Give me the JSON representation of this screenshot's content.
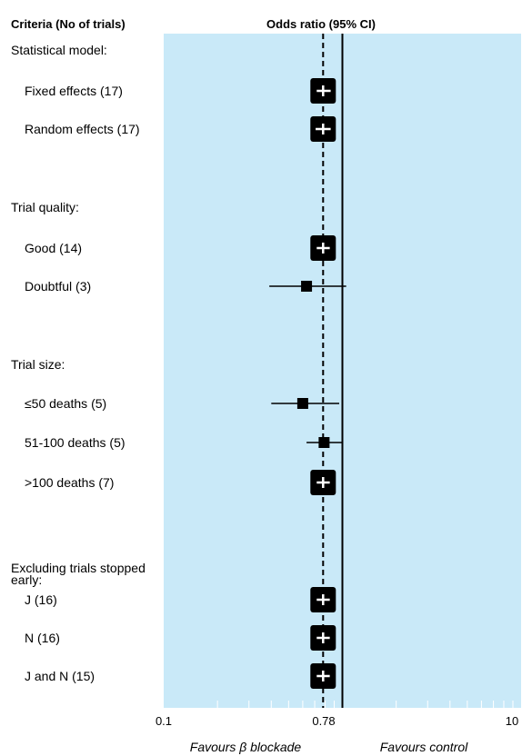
{
  "chart_data": {
    "type": "forest",
    "column_headers": {
      "criteria": "Criteria (No of trials)",
      "effect": "Odds ratio (95% CI)"
    },
    "x_scale": "log",
    "xlim": [
      0.1,
      10
    ],
    "x_tick_labels": [
      "0.1",
      "0.78",
      "10"
    ],
    "null_line": 1,
    "pooled_estimate": 0.78,
    "favours_left": "Favours β blockade",
    "favours_right": "Favours control",
    "colors": {
      "panel": "#c9e9f8",
      "marker": "#000000",
      "marker_cross": "#ffffff"
    },
    "rows": [
      {
        "label": "Statistical model:",
        "type": "group"
      },
      {
        "label": "Fixed effects (17)",
        "type": "estimate",
        "or": 0.78,
        "ci": [
          0.71,
          0.87
        ],
        "marker": "large"
      },
      {
        "label": "Random effects (17)",
        "type": "estimate",
        "or": 0.78,
        "ci": [
          0.7,
          0.87
        ],
        "marker": "large"
      },
      {
        "label": "Trial quality:",
        "type": "group"
      },
      {
        "label": "Good (14)",
        "type": "estimate",
        "or": 0.78,
        "ci": [
          0.71,
          0.86
        ],
        "marker": "large"
      },
      {
        "label": "Doubtful (3)",
        "type": "estimate",
        "or": 0.63,
        "ci": [
          0.39,
          1.05
        ],
        "marker": "small"
      },
      {
        "label": "Trial size:",
        "type": "group"
      },
      {
        "label": "≤50 deaths (5)",
        "type": "estimate",
        "or": 0.6,
        "ci": [
          0.4,
          0.96
        ],
        "marker": "small"
      },
      {
        "label": "51-100 deaths (5)",
        "type": "estimate",
        "or": 0.79,
        "ci": [
          0.63,
          0.99
        ],
        "marker": "small"
      },
      {
        "label": ">100 deaths (7)",
        "type": "estimate",
        "or": 0.78,
        "ci": [
          0.71,
          0.86
        ],
        "marker": "large"
      },
      {
        "label": "Excluding trials stopped early:",
        "type": "group"
      },
      {
        "label": "J (16)",
        "type": "estimate",
        "or": 0.78,
        "ci": [
          0.71,
          0.86
        ],
        "marker": "large"
      },
      {
        "label": "N (16)",
        "type": "estimate",
        "or": 0.78,
        "ci": [
          0.71,
          0.86
        ],
        "marker": "large"
      },
      {
        "label": "J and N (15)",
        "type": "estimate",
        "or": 0.78,
        "ci": [
          0.71,
          0.86
        ],
        "marker": "large"
      }
    ]
  }
}
